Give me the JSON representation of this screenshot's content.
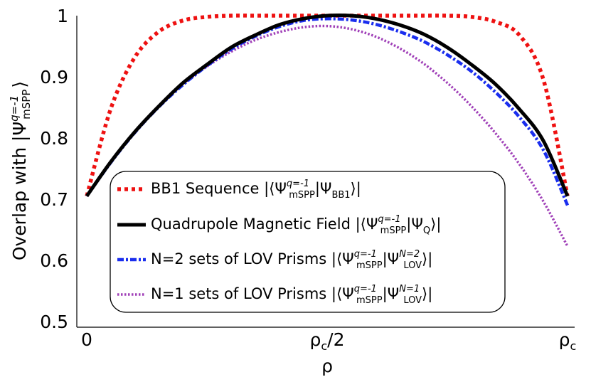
{
  "chart_data": {
    "type": "line",
    "xlabel": "ρ",
    "ylabel": {
      "prefix": "Overlap with |Ψ",
      "superscript": "q=-1",
      "subscript": "mSPP",
      "suffix": "⟩"
    },
    "x_ticks": [
      {
        "value": 0,
        "label": "0",
        "sub": ""
      },
      {
        "value": 0.5,
        "label": "ρ",
        "sub": "c",
        "suffix": "/2"
      },
      {
        "value": 1,
        "label": "ρ",
        "sub": "c",
        "suffix": ""
      }
    ],
    "y_ticks": [
      "0.5",
      "0.6",
      "0.7",
      "0.8",
      "0.9",
      "1"
    ],
    "xlim": [
      0,
      1
    ],
    "ylim": [
      0.5,
      1.0
    ],
    "grid": false,
    "legend_position": "lower-center",
    "x": [
      0,
      0.05,
      0.1,
      0.15,
      0.2,
      0.25,
      0.3,
      0.35,
      0.4,
      0.45,
      0.5,
      0.55,
      0.6,
      0.65,
      0.7,
      0.75,
      0.8,
      0.85,
      0.9,
      0.95,
      1.0
    ],
    "series": [
      {
        "key": "bb1",
        "color": "#ee1111",
        "style": "dotted",
        "legend": {
          "text": "BB1 Sequence |⟨Ψ",
          "sup": "q=-1",
          "sub": "mSPP",
          "mid": "|Ψ",
          "sub2": "BB1",
          "sup2": "",
          "end": "⟩|"
        },
        "values": [
          0.705,
          0.848,
          0.932,
          0.974,
          0.992,
          0.998,
          1.0,
          1.0,
          1.0,
          1.0,
          1.0,
          1.0,
          1.0,
          1.0,
          1.0,
          1.0,
          0.998,
          0.99,
          0.968,
          0.895,
          0.705
        ]
      },
      {
        "key": "quad",
        "color": "#000000",
        "style": "solid",
        "legend": {
          "text": "Quadrupole Magnetic Field |⟨Ψ",
          "sup": "q=-1",
          "sub": "mSPP",
          "mid": "|Ψ",
          "sub2": "Q",
          "sup2": "",
          "end": "⟩|"
        },
        "values": [
          0.705,
          0.761,
          0.81,
          0.852,
          0.89,
          0.92,
          0.948,
          0.968,
          0.985,
          0.995,
          1.0,
          1.0,
          0.995,
          0.985,
          0.97,
          0.948,
          0.92,
          0.888,
          0.847,
          0.795,
          0.705
        ]
      },
      {
        "key": "lov2",
        "color": "#1a2eee",
        "style": "dashdot",
        "legend": {
          "text": "N=2 sets of LOV Prisms |⟨Ψ",
          "sup": "q=-1",
          "sub": "mSPP",
          "mid": "|Ψ",
          "sub2": "LOV",
          "sup2": "N=2",
          "end": "⟩|"
        },
        "values": [
          0.705,
          0.76,
          0.809,
          0.851,
          0.887,
          0.918,
          0.945,
          0.966,
          0.982,
          0.992,
          0.995,
          0.993,
          0.986,
          0.974,
          0.958,
          0.936,
          0.909,
          0.875,
          0.834,
          0.78,
          0.69
        ]
      },
      {
        "key": "lov1",
        "color": "#a040b8",
        "style": "fine-dotted",
        "legend": {
          "text": "N=1 sets of LOV Prisms |⟨Ψ",
          "sup": "q=-1",
          "sub": "mSPP",
          "mid": "|Ψ",
          "sub2": "LOV",
          "sup2": "N=1",
          "end": "⟩|"
        },
        "values": [
          0.705,
          0.761,
          0.81,
          0.852,
          0.888,
          0.917,
          0.941,
          0.96,
          0.973,
          0.981,
          0.983,
          0.978,
          0.966,
          0.947,
          0.922,
          0.89,
          0.852,
          0.808,
          0.757,
          0.696,
          0.623
        ]
      }
    ]
  }
}
